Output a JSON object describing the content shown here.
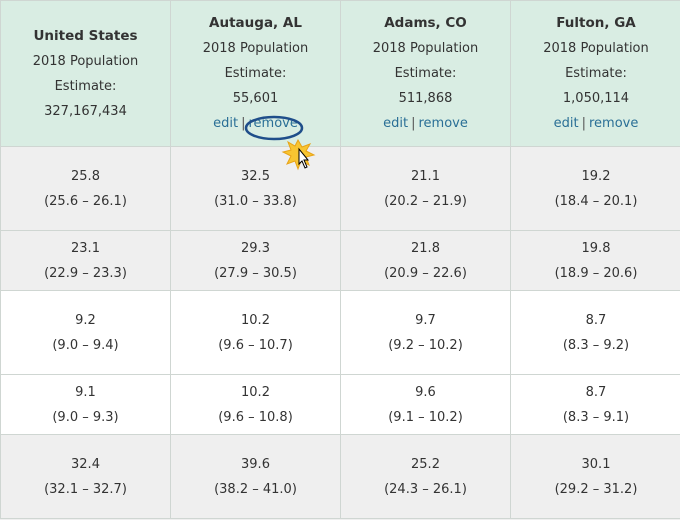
{
  "table": {
    "header": [
      {
        "name": "United States",
        "label": [
          "2018 Population",
          "Estimate:"
        ],
        "value": "327,167,434"
      },
      {
        "name": "Autauga, AL",
        "label": [
          "2018 Population",
          "Estimate:"
        ],
        "value": "55,601",
        "links": [
          "edit",
          "remove"
        ]
      },
      {
        "name": "Adams, CO",
        "label": [
          "2018 Population",
          "Estimate:"
        ],
        "value": "511,868",
        "links": [
          "edit",
          "remove"
        ]
      },
      {
        "name": "Fulton, GA",
        "label": [
          "2018 Population",
          "Estimate:"
        ],
        "value": "1,050,114",
        "links": [
          "edit",
          "remove"
        ]
      }
    ],
    "rows": [
      [
        {
          "value": "25.8",
          "interval": "(25.6 – 26.1)"
        },
        {
          "value": "32.5",
          "interval": "(31.0 – 33.8)"
        },
        {
          "value": "21.1",
          "interval": "(20.2 – 21.9)"
        },
        {
          "value": "19.2",
          "interval": "(18.4 – 20.1)"
        }
      ],
      [
        {
          "value": "23.1",
          "interval": "(22.9 – 23.3)"
        },
        {
          "value": "29.3",
          "interval": "(27.9 – 30.5)"
        },
        {
          "value": "21.8",
          "interval": "(20.9 – 22.6)"
        },
        {
          "value": "19.8",
          "interval": "(18.9 – 20.6)"
        }
      ],
      [
        {
          "value": "9.2",
          "interval": "(9.0 – 9.4)"
        },
        {
          "value": "10.2",
          "interval": "(9.6 – 10.7)"
        },
        {
          "value": "9.7",
          "interval": "(9.2 – 10.2)"
        },
        {
          "value": "8.7",
          "interval": "(8.3 – 9.2)"
        }
      ],
      [
        {
          "value": "9.1",
          "interval": "(9.0 – 9.3)"
        },
        {
          "value": "10.2",
          "interval": "(9.6 – 10.8)"
        },
        {
          "value": "9.6",
          "interval": "(9.1 – 10.2)"
        },
        {
          "value": "8.7",
          "interval": "(8.3 – 9.1)"
        }
      ],
      [
        {
          "value": "32.4",
          "interval": "(32.1 – 32.7)"
        },
        {
          "value": "39.6",
          "interval": "(38.2 – 41.0)"
        },
        {
          "value": "25.2",
          "interval": "(24.3 – 26.1)"
        },
        {
          "value": "30.1",
          "interval": "(29.2 – 31.2)"
        }
      ]
    ]
  }
}
